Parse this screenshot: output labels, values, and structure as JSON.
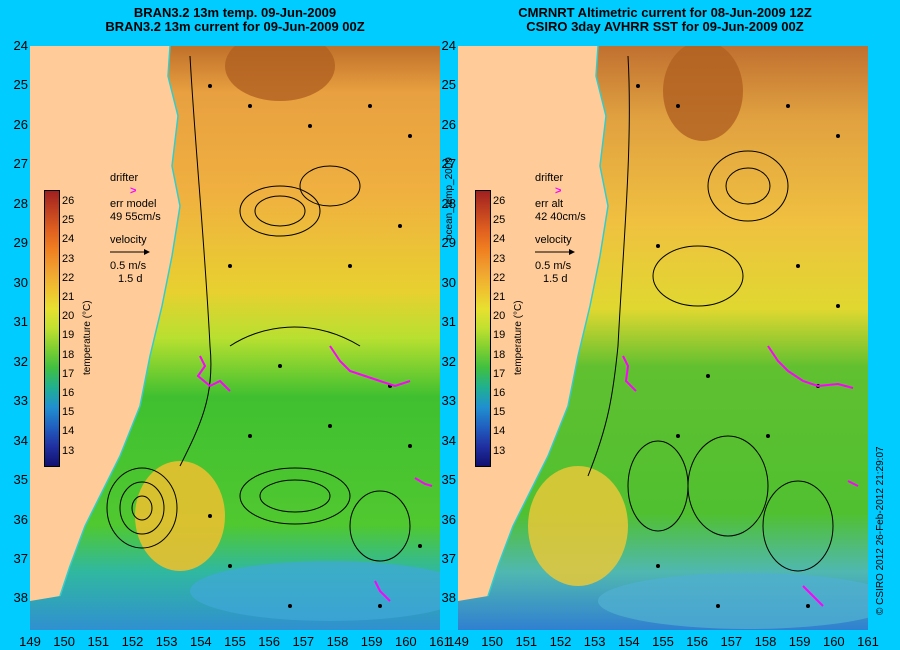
{
  "left": {
    "title_line1": "BRAN3.2 13m temp. 09-Jun-2009",
    "title_line2": "BRAN3.2 13m current for 09-Jun-2009 00Z",
    "legend": {
      "drifter": "drifter",
      "err": "err model",
      "err_value": "49 55cm/s",
      "velocity": "velocity",
      "speed": "0.5 m/s",
      "duration": "1.5 d"
    }
  },
  "right": {
    "title_line1": "CMRNRT Altimetric current for 08-Jun-2009 12Z",
    "title_line2": "CSIRO 3day AVHRR SST for 09-Jun-2009 00Z",
    "legend": {
      "drifter": "drifter",
      "err": "err alt",
      "err_value": "42 40cm/s",
      "velocity": "velocity",
      "speed": "0.5 m/s",
      "duration": "1.5 d"
    }
  },
  "colorbar": {
    "ticks": [
      "26",
      "25",
      "24",
      "23",
      "22",
      "21",
      "20",
      "19",
      "18",
      "17",
      "16",
      "15",
      "14",
      "13"
    ],
    "label": "temperature (°C)"
  },
  "lat_ticks": [
    "24",
    "25",
    "26",
    "27",
    "28",
    "29",
    "30",
    "31",
    "32",
    "33",
    "34",
    "35",
    "36",
    "37",
    "38"
  ],
  "lon_ticks": [
    "149",
    "150",
    "151",
    "152",
    "153",
    "154",
    "155",
    "156",
    "157",
    "158",
    "159",
    "160",
    "161"
  ],
  "side_label": "ocean_temp_2009",
  "copyright": "© CSIRO 2012   26-Feb-2012 21:29:07",
  "colors": {
    "background": "#00ccff",
    "land": "#ffcc99",
    "drifter": "#ff00ff",
    "coast": "#33cccc"
  }
}
